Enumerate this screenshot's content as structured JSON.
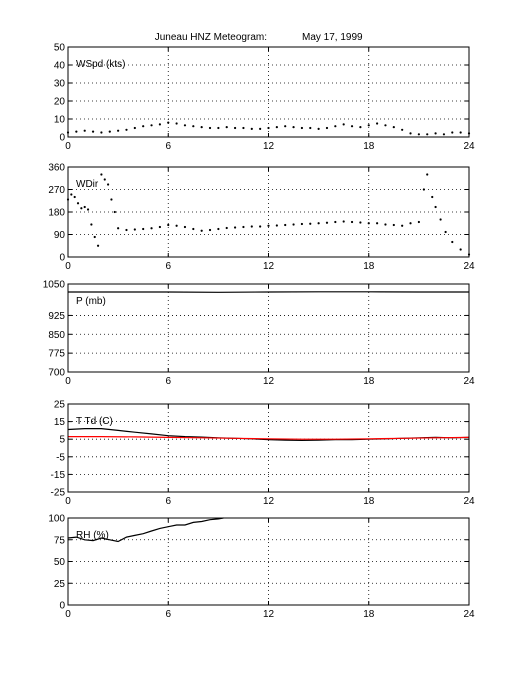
{
  "title": "Juneau HNZ Meteogram:",
  "date": "May 17, 1999",
  "chart_data": [
    {
      "type": "scatter",
      "label": "WSpd (kts)",
      "x_ticks": [
        "0",
        "6",
        "12",
        "18",
        "24"
      ],
      "y_ticks": [
        "0",
        "10",
        "20",
        "30",
        "40",
        "50"
      ],
      "xlim": [
        0,
        24
      ],
      "ylim": [
        0,
        50
      ],
      "grid": true,
      "series": [
        {
          "color": "#000000",
          "points": [
            [
              0,
              2.5
            ],
            [
              0.5,
              3
            ],
            [
              1,
              3.5
            ],
            [
              1.5,
              3
            ],
            [
              2,
              2.5
            ],
            [
              2.5,
              3
            ],
            [
              3,
              3.5
            ],
            [
              3.5,
              4
            ],
            [
              4,
              5
            ],
            [
              4.5,
              6
            ],
            [
              5,
              6.5
            ],
            [
              5.5,
              7
            ],
            [
              6,
              8
            ],
            [
              6.5,
              7.5
            ],
            [
              7,
              6.5
            ],
            [
              7.5,
              6
            ],
            [
              8,
              5.5
            ],
            [
              8.5,
              5
            ],
            [
              9,
              5
            ],
            [
              9.5,
              5.5
            ],
            [
              10,
              5
            ],
            [
              10.5,
              5
            ],
            [
              11,
              4.5
            ],
            [
              11.5,
              4.5
            ],
            [
              12,
              5
            ],
            [
              12.5,
              5.5
            ],
            [
              13,
              6
            ],
            [
              13.5,
              5.5
            ],
            [
              14,
              5
            ],
            [
              14.5,
              5
            ],
            [
              15,
              4.5
            ],
            [
              15.5,
              5
            ],
            [
              16,
              6
            ],
            [
              16.5,
              7
            ],
            [
              17,
              6
            ],
            [
              17.5,
              5.5
            ],
            [
              18,
              6.5
            ],
            [
              18.5,
              7.5
            ],
            [
              19,
              6.5
            ],
            [
              19.5,
              5.5
            ],
            [
              20,
              4
            ],
            [
              20.5,
              2
            ],
            [
              21,
              1.5
            ],
            [
              21.5,
              1.5
            ],
            [
              22,
              2
            ],
            [
              22.5,
              1.5
            ],
            [
              23,
              2.5
            ],
            [
              23.5,
              2.5
            ],
            [
              24,
              2
            ]
          ]
        }
      ]
    },
    {
      "type": "scatter",
      "label": "WDir",
      "x_ticks": [
        "0",
        "6",
        "12",
        "18",
        "24"
      ],
      "y_ticks": [
        "0",
        "90",
        "180",
        "270",
        "360"
      ],
      "xlim": [
        0,
        24
      ],
      "ylim": [
        0,
        360
      ],
      "grid": true,
      "series": [
        {
          "color": "#000000",
          "points": [
            [
              0,
              230
            ],
            [
              0.2,
              250
            ],
            [
              0.4,
              240
            ],
            [
              0.6,
              215
            ],
            [
              0.8,
              195
            ],
            [
              1,
              200
            ],
            [
              1.2,
              190
            ],
            [
              1.4,
              130
            ],
            [
              1.6,
              80
            ],
            [
              1.8,
              45
            ],
            [
              2,
              330
            ],
            [
              2.2,
              310
            ],
            [
              2.4,
              290
            ],
            [
              2.6,
              230
            ],
            [
              2.8,
              180
            ],
            [
              3,
              115
            ],
            [
              3.5,
              108
            ],
            [
              4,
              110
            ],
            [
              4.5,
              112
            ],
            [
              5,
              115
            ],
            [
              5.5,
              120
            ],
            [
              6,
              128
            ],
            [
              6.5,
              125
            ],
            [
              7,
              120
            ],
            [
              7.5,
              112
            ],
            [
              8,
              105
            ],
            [
              8.5,
              108
            ],
            [
              9,
              112
            ],
            [
              9.5,
              116
            ],
            [
              10,
              118
            ],
            [
              10.5,
              120
            ],
            [
              11,
              122
            ],
            [
              11.5,
              122
            ],
            [
              12,
              125
            ],
            [
              12.5,
              126
            ],
            [
              13,
              128
            ],
            [
              13.5,
              130
            ],
            [
              14,
              132
            ],
            [
              14.5,
              133
            ],
            [
              15,
              135
            ],
            [
              15.5,
              137
            ],
            [
              16,
              140
            ],
            [
              16.5,
              142
            ],
            [
              17,
              140
            ],
            [
              17.5,
              138
            ],
            [
              18,
              135
            ],
            [
              18.5,
              135
            ],
            [
              19,
              130
            ],
            [
              19.5,
              128
            ],
            [
              20,
              125
            ],
            [
              20.5,
              135
            ],
            [
              21,
              140
            ],
            [
              21.3,
              270
            ],
            [
              21.5,
              330
            ],
            [
              21.8,
              240
            ],
            [
              22,
              200
            ],
            [
              22.3,
              150
            ],
            [
              22.6,
              100
            ],
            [
              23,
              60
            ],
            [
              23.5,
              30
            ],
            [
              24,
              10
            ]
          ]
        }
      ]
    },
    {
      "type": "line",
      "label": "P (mb)",
      "x_ticks": [
        "0",
        "6",
        "12",
        "18",
        "24"
      ],
      "y_ticks": [
        "700",
        "775",
        "850",
        "925",
        "1050"
      ],
      "xlim": [
        0,
        24
      ],
      "ylim": [
        700,
        1050
      ],
      "grid": true,
      "series": [
        {
          "color": "#000000",
          "points": [
            [
              0,
              1018
            ],
            [
              3,
              1018
            ],
            [
              6,
              1018
            ],
            [
              9,
              1017
            ],
            [
              12,
              1018
            ],
            [
              15,
              1019
            ],
            [
              18,
              1019
            ],
            [
              21,
              1018
            ],
            [
              24,
              1018
            ]
          ]
        }
      ]
    },
    {
      "type": "line",
      "label": "T Td (C)",
      "x_ticks": [
        "0",
        "6",
        "12",
        "18",
        "24"
      ],
      "y_ticks": [
        "-25",
        "-15",
        "-5",
        "5",
        "15",
        "25"
      ],
      "xlim": [
        0,
        24
      ],
      "ylim": [
        -25,
        25
      ],
      "grid": true,
      "series": [
        {
          "color": "#000000",
          "points": [
            [
              0,
              10.5
            ],
            [
              1,
              11
            ],
            [
              2,
              11
            ],
            [
              3,
              10
            ],
            [
              4,
              9
            ],
            [
              5,
              8
            ],
            [
              6,
              7
            ],
            [
              7,
              6.5
            ],
            [
              8,
              6.2
            ],
            [
              9,
              5.8
            ],
            [
              10,
              5.5
            ],
            [
              11,
              5.2
            ],
            [
              12,
              4.8
            ],
            [
              13,
              4.5
            ],
            [
              14,
              4.3
            ],
            [
              15,
              4.5
            ],
            [
              16,
              4.7
            ],
            [
              17,
              4.8
            ],
            [
              18,
              5
            ],
            [
              19,
              5.2
            ],
            [
              20,
              5.5
            ],
            [
              21,
              5.8
            ],
            [
              22,
              6
            ],
            [
              23,
              5.8
            ],
            [
              24,
              6
            ]
          ]
        },
        {
          "color": "#ff0000",
          "points": [
            [
              0,
              6.5
            ],
            [
              2,
              6.5
            ],
            [
              4,
              6.3
            ],
            [
              6,
              6
            ],
            [
              8,
              5.8
            ],
            [
              10,
              5.5
            ],
            [
              12,
              5.2
            ],
            [
              14,
              5
            ],
            [
              16,
              5
            ],
            [
              18,
              5.2
            ],
            [
              20,
              5.5
            ],
            [
              22,
              5.8
            ],
            [
              24,
              6
            ]
          ]
        }
      ]
    },
    {
      "type": "line",
      "label": "RH (%)",
      "x_ticks": [
        "0",
        "6",
        "12",
        "18",
        "24"
      ],
      "y_ticks": [
        "0",
        "25",
        "50",
        "75",
        "100"
      ],
      "xlim": [
        0,
        24
      ],
      "ylim": [
        0,
        100
      ],
      "grid": true,
      "series": [
        {
          "color": "#000000",
          "points": [
            [
              0,
              77
            ],
            [
              0.5,
              78
            ],
            [
              1,
              75
            ],
            [
              1.5,
              74
            ],
            [
              2,
              77
            ],
            [
              2.5,
              75
            ],
            [
              3,
              73
            ],
            [
              3.5,
              78
            ],
            [
              4,
              80
            ],
            [
              4.5,
              82
            ],
            [
              5,
              85
            ],
            [
              5.5,
              88
            ],
            [
              6,
              90
            ],
            [
              6.5,
              92
            ],
            [
              7,
              92
            ],
            [
              7.5,
              95
            ],
            [
              8,
              96
            ],
            [
              8.5,
              98
            ],
            [
              9,
              99
            ],
            [
              9.3,
              100
            ]
          ]
        }
      ]
    }
  ]
}
